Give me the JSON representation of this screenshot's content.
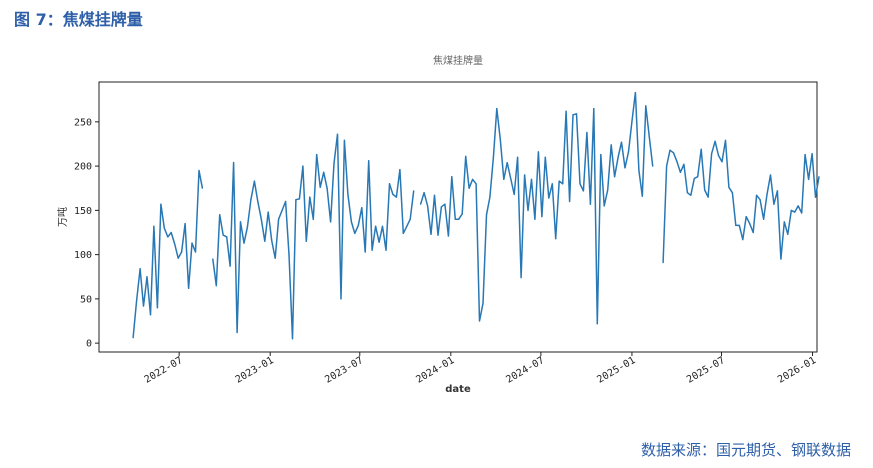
{
  "header": {
    "figure_caption": "图 7：焦煤挂牌量"
  },
  "footer": {
    "source": "数据来源：国元期货、钢联数据"
  },
  "colors": {
    "caption": "#2e5fa8",
    "line": "#2878b5",
    "axis": "#222222"
  },
  "chart_data": {
    "type": "line",
    "title": "焦煤挂牌量",
    "xlabel": "date",
    "ylabel": "万吨",
    "x_tick_labels": [
      "2022-07",
      "2023-01",
      "2023-07",
      "2024-01",
      "2024-07",
      "2025-01",
      "2025-07",
      "2026-01"
    ],
    "y_ticks": [
      0,
      50,
      100,
      150,
      200,
      250
    ],
    "xlim": [
      "2022-01-20",
      "2026-01-10"
    ],
    "ylim": [
      -10,
      295
    ],
    "grid": false,
    "legend": "none",
    "series": [
      {
        "values": [
          [
            "2022-03-30",
            6
          ],
          [
            "2022-04-06",
            48
          ],
          [
            "2022-04-13",
            84
          ],
          [
            "2022-04-20",
            42
          ],
          [
            "2022-04-27",
            75
          ],
          [
            "2022-05-04",
            32
          ],
          [
            "2022-05-11",
            132
          ],
          [
            "2022-05-18",
            40
          ],
          [
            "2022-05-25",
            157
          ],
          [
            "2022-06-01",
            130
          ],
          [
            "2022-06-08",
            120
          ],
          [
            "2022-06-15",
            125
          ],
          [
            "2022-06-22",
            112
          ],
          [
            "2022-06-29",
            96
          ],
          [
            "2022-07-06",
            103
          ],
          [
            "2022-07-13",
            135
          ],
          [
            "2022-07-20",
            62
          ],
          [
            "2022-07-27",
            113
          ],
          [
            "2022-08-03",
            103
          ],
          [
            "2022-08-10",
            195
          ],
          [
            "2022-08-17",
            175
          ],
          [
            "2022-08-24",
            null
          ],
          [
            "2022-09-07",
            95
          ],
          [
            "2022-09-14",
            65
          ],
          [
            "2022-09-21",
            145
          ],
          [
            "2022-09-28",
            122
          ],
          [
            "2022-10-05",
            120
          ],
          [
            "2022-10-12",
            87
          ],
          [
            "2022-10-19",
            204
          ],
          [
            "2022-10-26",
            12
          ],
          [
            "2022-11-02",
            137
          ],
          [
            "2022-11-09",
            113
          ],
          [
            "2022-11-16",
            131
          ],
          [
            "2022-11-23",
            162
          ],
          [
            "2022-11-30",
            183
          ],
          [
            "2022-12-07",
            160
          ],
          [
            "2022-12-14",
            140
          ],
          [
            "2022-12-21",
            115
          ],
          [
            "2022-12-28",
            148
          ],
          [
            "2023-01-04",
            116
          ],
          [
            "2023-01-11",
            96
          ],
          [
            "2023-01-18",
            140
          ],
          [
            "2023-01-25",
            150
          ],
          [
            "2023-02-01",
            160
          ],
          [
            "2023-02-08",
            100
          ],
          [
            "2023-02-15",
            5
          ],
          [
            "2023-02-22",
            162
          ],
          [
            "2023-03-01",
            163
          ],
          [
            "2023-03-08",
            200
          ],
          [
            "2023-03-15",
            115
          ],
          [
            "2023-03-22",
            165
          ],
          [
            "2023-03-29",
            140
          ],
          [
            "2023-04-05",
            213
          ],
          [
            "2023-04-12",
            176
          ],
          [
            "2023-04-19",
            193
          ],
          [
            "2023-04-26",
            175
          ],
          [
            "2023-05-03",
            137
          ],
          [
            "2023-05-10",
            203
          ],
          [
            "2023-05-17",
            236
          ],
          [
            "2023-05-24",
            50
          ],
          [
            "2023-05-31",
            229
          ],
          [
            "2023-06-07",
            168
          ],
          [
            "2023-06-14",
            137
          ],
          [
            "2023-06-21",
            124
          ],
          [
            "2023-06-28",
            133
          ],
          [
            "2023-07-05",
            153
          ],
          [
            "2023-07-12",
            103
          ],
          [
            "2023-07-19",
            206
          ],
          [
            "2023-07-26",
            105
          ],
          [
            "2023-08-02",
            132
          ],
          [
            "2023-08-09",
            114
          ],
          [
            "2023-08-16",
            132
          ],
          [
            "2023-08-23",
            105
          ],
          [
            "2023-08-30",
            180
          ],
          [
            "2023-09-06",
            168
          ],
          [
            "2023-09-13",
            165
          ],
          [
            "2023-09-20",
            196
          ],
          [
            "2023-09-27",
            124
          ],
          [
            "2023-10-04",
            132
          ],
          [
            "2023-10-11",
            140
          ],
          [
            "2023-10-18",
            172
          ],
          [
            "2023-10-25",
            null
          ],
          [
            "2023-11-01",
            157
          ],
          [
            "2023-11-08",
            170
          ],
          [
            "2023-11-15",
            155
          ],
          [
            "2023-11-22",
            123
          ],
          [
            "2023-11-29",
            167
          ],
          [
            "2023-12-06",
            122
          ],
          [
            "2023-12-13",
            154
          ],
          [
            "2023-12-20",
            157
          ],
          [
            "2023-12-27",
            121
          ],
          [
            "2024-01-03",
            188
          ],
          [
            "2024-01-10",
            140
          ],
          [
            "2024-01-17",
            140
          ],
          [
            "2024-01-24",
            146
          ],
          [
            "2024-01-31",
            211
          ],
          [
            "2024-02-07",
            175
          ],
          [
            "2024-02-14",
            185
          ],
          [
            "2024-02-21",
            180
          ],
          [
            "2024-02-28",
            25
          ],
          [
            "2024-03-06",
            45
          ],
          [
            "2024-03-13",
            145
          ],
          [
            "2024-03-20",
            165
          ],
          [
            "2024-03-27",
            210
          ],
          [
            "2024-04-03",
            265
          ],
          [
            "2024-04-10",
            230
          ],
          [
            "2024-04-17",
            185
          ],
          [
            "2024-04-24",
            204
          ],
          [
            "2024-05-01",
            186
          ],
          [
            "2024-05-08",
            168
          ],
          [
            "2024-05-15",
            210
          ],
          [
            "2024-05-22",
            74
          ],
          [
            "2024-05-29",
            190
          ],
          [
            "2024-06-05",
            150
          ],
          [
            "2024-06-12",
            185
          ],
          [
            "2024-06-19",
            140
          ],
          [
            "2024-06-26",
            216
          ],
          [
            "2024-07-03",
            143
          ],
          [
            "2024-07-10",
            210
          ],
          [
            "2024-07-17",
            164
          ],
          [
            "2024-07-24",
            180
          ],
          [
            "2024-07-31",
            118
          ],
          [
            "2024-08-07",
            183
          ],
          [
            "2024-08-14",
            180
          ],
          [
            "2024-08-21",
            262
          ],
          [
            "2024-08-28",
            160
          ],
          [
            "2024-09-04",
            258
          ],
          [
            "2024-09-11",
            259
          ],
          [
            "2024-09-18",
            180
          ],
          [
            "2024-09-25",
            172
          ],
          [
            "2024-10-02",
            238
          ],
          [
            "2024-10-09",
            157
          ],
          [
            "2024-10-16",
            265
          ],
          [
            "2024-10-23",
            22
          ],
          [
            "2024-10-30",
            213
          ],
          [
            "2024-11-06",
            155
          ],
          [
            "2024-11-13",
            173
          ],
          [
            "2024-11-20",
            224
          ],
          [
            "2024-11-27",
            188
          ],
          [
            "2024-12-04",
            210
          ],
          [
            "2024-12-11",
            227
          ],
          [
            "2024-12-18",
            198
          ],
          [
            "2024-12-25",
            216
          ],
          [
            "2025-01-01",
            250
          ],
          [
            "2025-01-08",
            283
          ],
          [
            "2025-01-15",
            195
          ],
          [
            "2025-01-22",
            166
          ],
          [
            "2025-01-29",
            268
          ],
          [
            "2025-02-05",
            233
          ],
          [
            "2025-02-12",
            200
          ],
          [
            "2025-02-19",
            null
          ],
          [
            "2025-03-05",
            91
          ],
          [
            "2025-03-12",
            200
          ],
          [
            "2025-03-19",
            218
          ],
          [
            "2025-03-26",
            215
          ],
          [
            "2025-04-02",
            205
          ],
          [
            "2025-04-09",
            193
          ],
          [
            "2025-04-16",
            202
          ],
          [
            "2025-04-23",
            170
          ],
          [
            "2025-04-30",
            167
          ],
          [
            "2025-05-07",
            186
          ],
          [
            "2025-05-14",
            188
          ],
          [
            "2025-05-21",
            219
          ],
          [
            "2025-05-28",
            173
          ],
          [
            "2025-06-04",
            165
          ],
          [
            "2025-06-11",
            214
          ],
          [
            "2025-06-18",
            228
          ],
          [
            "2025-06-25",
            212
          ],
          [
            "2025-07-02",
            205
          ],
          [
            "2025-07-09",
            229
          ],
          [
            "2025-07-16",
            176
          ],
          [
            "2025-07-23",
            170
          ],
          [
            "2025-07-30",
            133
          ],
          [
            "2025-08-06",
            133
          ],
          [
            "2025-08-13",
            117
          ],
          [
            "2025-08-20",
            143
          ],
          [
            "2025-08-27",
            135
          ],
          [
            "2025-09-03",
            125
          ],
          [
            "2025-09-10",
            167
          ],
          [
            "2025-09-17",
            162
          ],
          [
            "2025-09-24",
            140
          ],
          [
            "2025-10-01",
            168
          ],
          [
            "2025-10-08",
            190
          ],
          [
            "2025-10-15",
            157
          ],
          [
            "2025-10-22",
            172
          ],
          [
            "2025-10-29",
            95
          ],
          [
            "2025-11-05",
            137
          ],
          [
            "2025-11-12",
            123
          ],
          [
            "2025-11-19",
            150
          ],
          [
            "2025-11-26",
            148
          ],
          [
            "2025-12-03",
            155
          ],
          [
            "2025-12-10",
            147
          ],
          [
            "2025-12-17",
            213
          ],
          [
            "2025-12-24",
            185
          ],
          [
            "2025-12-31",
            214
          ],
          [
            "2026-01-07",
            165
          ],
          [
            "2026-01-14",
            188
          ]
        ]
      }
    ]
  }
}
